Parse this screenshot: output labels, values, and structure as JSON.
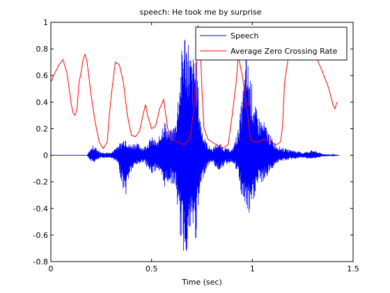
{
  "chart_data": {
    "type": "line",
    "title": "speech: He took me by surprise",
    "xlabel": "Time (sec)",
    "ylabel": "",
    "xlim": [
      0,
      1.5
    ],
    "ylim": [
      -0.8,
      1
    ],
    "xticks": [
      0,
      0.5,
      1,
      1.5
    ],
    "xtick_labels": [
      "0",
      "0.5",
      "1",
      "1.5"
    ],
    "yticks": [
      -0.8,
      -0.6,
      -0.4,
      -0.2,
      0,
      0.2,
      0.4,
      0.6,
      0.8,
      1
    ],
    "ytick_labels": [
      "-0.8",
      "-0.6",
      "-0.4",
      "-0.2",
      "0",
      "0.2",
      "0.4",
      "0.6",
      "0.8",
      "1"
    ],
    "grid": false,
    "legend_position": "top-right",
    "series": [
      {
        "name": "Speech",
        "color": "#0000ff",
        "style": "oscillating waveform (envelope shown)",
        "x": [
          0.0,
          0.18,
          0.19,
          0.21,
          0.23,
          0.25,
          0.3,
          0.33,
          0.35,
          0.37,
          0.39,
          0.42,
          0.46,
          0.5,
          0.53,
          0.56,
          0.59,
          0.62,
          0.64,
          0.66,
          0.68,
          0.7,
          0.72,
          0.74,
          0.76,
          0.78,
          0.8,
          0.83,
          0.86,
          0.9,
          0.93,
          0.95,
          0.97,
          0.99,
          1.01,
          1.03,
          1.06,
          1.09,
          1.12,
          1.16,
          1.2,
          1.25,
          1.3,
          1.35,
          1.43
        ],
        "upper": [
          0.0,
          0.0,
          0.03,
          0.08,
          0.05,
          0.02,
          0.02,
          0.08,
          0.1,
          0.15,
          0.08,
          0.1,
          0.06,
          0.14,
          0.1,
          0.28,
          0.18,
          0.25,
          0.62,
          0.99,
          0.92,
          0.72,
          0.82,
          0.3,
          0.15,
          0.08,
          0.05,
          0.1,
          0.06,
          0.04,
          0.2,
          0.45,
          0.78,
          0.62,
          0.4,
          0.3,
          0.25,
          0.15,
          0.08,
          0.05,
          0.04,
          0.02,
          0.04,
          0.01,
          0.0
        ],
        "lower": [
          0.0,
          0.0,
          -0.03,
          -0.06,
          -0.04,
          -0.02,
          -0.02,
          -0.06,
          -0.2,
          -0.33,
          -0.15,
          -0.08,
          -0.05,
          -0.15,
          -0.1,
          -0.25,
          -0.2,
          -0.25,
          -0.6,
          -0.76,
          -0.72,
          -0.55,
          -0.65,
          -0.3,
          -0.15,
          -0.08,
          -0.05,
          -0.12,
          -0.08,
          -0.05,
          -0.15,
          -0.35,
          -0.42,
          -0.5,
          -0.32,
          -0.22,
          -0.2,
          -0.12,
          -0.06,
          -0.04,
          -0.03,
          -0.02,
          -0.03,
          -0.01,
          0.0
        ]
      },
      {
        "name": "Average Zero Crossing Rate",
        "color": "#ff0000",
        "style": "line",
        "x": [
          0.0,
          0.02,
          0.04,
          0.06,
          0.08,
          0.1,
          0.11,
          0.12,
          0.13,
          0.14,
          0.15,
          0.16,
          0.17,
          0.18,
          0.2,
          0.22,
          0.24,
          0.26,
          0.28,
          0.29,
          0.3,
          0.32,
          0.34,
          0.36,
          0.38,
          0.4,
          0.42,
          0.44,
          0.46,
          0.47,
          0.48,
          0.5,
          0.52,
          0.54,
          0.56,
          0.58,
          0.6,
          0.63,
          0.66,
          0.69,
          0.71,
          0.72,
          0.73,
          0.74,
          0.75,
          0.76,
          0.78,
          0.8,
          0.82,
          0.85,
          0.88,
          0.9,
          0.92,
          0.93,
          0.95,
          0.97,
          0.99,
          1.01,
          1.03,
          1.06,
          1.09,
          1.12,
          1.14,
          1.15,
          1.16,
          1.18,
          1.2,
          1.25,
          1.3,
          1.35,
          1.38,
          1.4,
          1.41,
          1.42
        ],
        "y": [
          0.55,
          0.62,
          0.68,
          0.72,
          0.62,
          0.4,
          0.32,
          0.3,
          0.35,
          0.55,
          0.62,
          0.72,
          0.76,
          0.7,
          0.45,
          0.25,
          0.1,
          0.05,
          0.1,
          0.3,
          0.45,
          0.7,
          0.68,
          0.55,
          0.3,
          0.15,
          0.14,
          0.18,
          0.32,
          0.38,
          0.3,
          0.2,
          0.22,
          0.35,
          0.42,
          0.2,
          0.12,
          0.1,
          0.08,
          0.12,
          0.35,
          0.6,
          0.98,
          0.88,
          0.5,
          0.2,
          0.12,
          0.1,
          0.08,
          0.05,
          0.08,
          0.3,
          0.55,
          0.75,
          0.6,
          0.4,
          0.12,
          0.1,
          0.1,
          0.12,
          0.1,
          0.08,
          0.1,
          0.22,
          0.55,
          0.75,
          0.82,
          0.85,
          0.8,
          0.62,
          0.5,
          0.38,
          0.35,
          0.4
        ]
      }
    ]
  }
}
